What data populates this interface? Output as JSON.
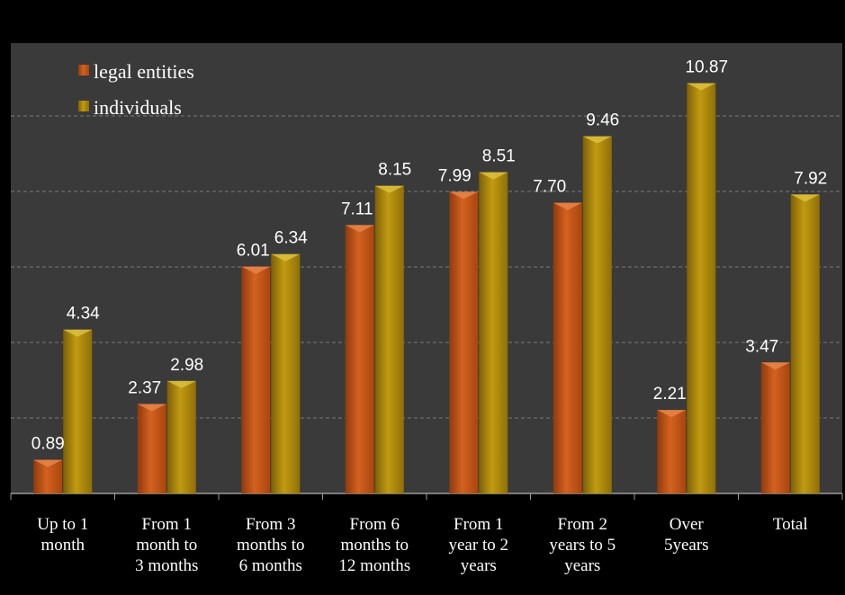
{
  "chart_data": {
    "type": "bar",
    "categories": [
      [
        "Up to 1",
        "month"
      ],
      [
        "From 1",
        "month to",
        "3 months"
      ],
      [
        "From 3",
        "months to",
        "6 months"
      ],
      [
        "From 6",
        "months to",
        "12 months"
      ],
      [
        "From 1",
        "year to 2",
        "years"
      ],
      [
        "From 2",
        "years to 5",
        "years"
      ],
      [
        "Over",
        "5years"
      ],
      [
        "Total"
      ]
    ],
    "series": [
      {
        "name": "legal entities",
        "values": [
          0.89,
          2.37,
          6.01,
          7.11,
          7.99,
          7.7,
          2.21,
          3.47
        ],
        "labels": [
          "0.89",
          "2.37",
          "6.01",
          "7.11",
          "7.99",
          "7.70",
          "2.21",
          "3.47"
        ],
        "color": "#c8561a"
      },
      {
        "name": "individuals",
        "values": [
          4.34,
          2.98,
          6.34,
          8.15,
          8.51,
          9.46,
          10.87,
          7.92
        ],
        "labels": [
          "4.34",
          "2.98",
          "6.34",
          "8.15",
          "8.51",
          "9.46",
          "10.87",
          "7.92"
        ],
        "color": "#b08a0a"
      }
    ],
    "ylim": [
      0,
      12
    ],
    "grid": true,
    "legend_position": "top-left",
    "plot_background": "#3a3a3a",
    "page_background": "#000000"
  }
}
